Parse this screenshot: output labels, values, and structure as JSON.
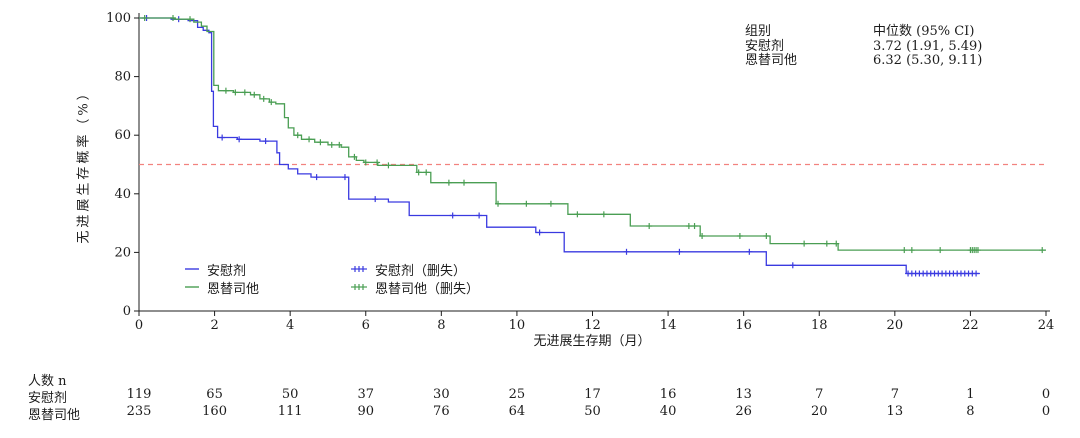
{
  "colors": {
    "axis": "#1c1c1c",
    "placebo_blue": "#3a3ae0",
    "entinostat_green": "#4a9e53",
    "reference_red": "#f2827f"
  },
  "chart_data": {
    "type": "line",
    "subtype": "kaplan-meier-step",
    "title": "",
    "xlabel": "无进展生存期（月）",
    "ylabel": "无进展生存概率（%）",
    "xlim": [
      0,
      24
    ],
    "ylim": [
      0,
      100
    ],
    "xticks": [
      0,
      2,
      4,
      6,
      8,
      10,
      12,
      14,
      16,
      18,
      20,
      22,
      24
    ],
    "yticks": [
      0,
      20,
      40,
      60,
      80,
      100
    ],
    "grid": false,
    "reference_line_y": 50,
    "legend_position": "inside-bottom-left",
    "legend_entries": [
      "安慰剂",
      "恩替司他",
      "安慰剂（删失）",
      "恩替司他（删失）"
    ],
    "series": [
      {
        "name": "安慰剂",
        "color": "#3a3ae0",
        "points": [
          [
            0,
            100
          ],
          [
            0.85,
            99.6
          ],
          [
            1.3,
            99.1
          ],
          [
            1.55,
            96.8
          ],
          [
            1.7,
            95.8
          ],
          [
            1.85,
            95.0
          ],
          [
            1.92,
            75
          ],
          [
            1.97,
            63
          ],
          [
            2.08,
            59.2
          ],
          [
            2.6,
            58.6
          ],
          [
            3.2,
            58.0
          ],
          [
            3.65,
            54
          ],
          [
            3.72,
            50
          ],
          [
            3.95,
            48.5
          ],
          [
            4.2,
            46.8
          ],
          [
            4.55,
            45.7
          ],
          [
            5.55,
            38.2
          ],
          [
            6.6,
            37.2
          ],
          [
            7.15,
            32.6
          ],
          [
            9.2,
            28.6
          ],
          [
            10.5,
            26.8
          ],
          [
            11.25,
            20.2
          ],
          [
            16.6,
            15.6
          ],
          [
            20.3,
            12.8
          ]
        ],
        "end_x": 22.25,
        "censor_marks": [
          0.2,
          1.05,
          2.2,
          2.65,
          3.35,
          4.7,
          5.45,
          6.25,
          8.3,
          9.0,
          10.6,
          12.9,
          14.3,
          16.15,
          17.3,
          20.35,
          20.45,
          20.55,
          20.65,
          20.75,
          20.85,
          20.95,
          21.05,
          21.15,
          21.25,
          21.35,
          21.45,
          21.55,
          21.65,
          21.75,
          21.85,
          21.95,
          22.05,
          22.15
        ]
      },
      {
        "name": "恩替司他",
        "color": "#4a9e53",
        "points": [
          [
            0,
            100
          ],
          [
            0.95,
            99.6
          ],
          [
            1.45,
            98.6
          ],
          [
            1.65,
            97.2
          ],
          [
            1.8,
            95.4
          ],
          [
            1.98,
            77
          ],
          [
            2.1,
            75.2
          ],
          [
            2.5,
            74.6
          ],
          [
            2.95,
            73.8
          ],
          [
            3.2,
            72.4
          ],
          [
            3.45,
            71.3
          ],
          [
            3.62,
            70.7
          ],
          [
            3.85,
            66
          ],
          [
            3.95,
            62.5
          ],
          [
            4.1,
            60
          ],
          [
            4.3,
            58.6
          ],
          [
            4.65,
            57.6
          ],
          [
            5.0,
            56.7
          ],
          [
            5.35,
            55.9
          ],
          [
            5.55,
            52.6
          ],
          [
            5.75,
            51.4
          ],
          [
            5.95,
            50.7
          ],
          [
            6.32,
            49.7
          ],
          [
            7.35,
            47.3
          ],
          [
            7.72,
            43.8
          ],
          [
            9.45,
            36.6
          ],
          [
            11.35,
            33.0
          ],
          [
            13.0,
            29.0
          ],
          [
            14.85,
            25.6
          ],
          [
            16.7,
            23.0
          ],
          [
            18.5,
            20.8
          ]
        ],
        "end_x": 24,
        "censor_marks": [
          0.15,
          0.9,
          1.35,
          2.3,
          2.55,
          2.8,
          3.05,
          3.3,
          3.5,
          4.2,
          4.5,
          4.8,
          5.1,
          5.3,
          5.7,
          6.0,
          6.3,
          6.6,
          7.4,
          7.6,
          8.2,
          8.6,
          9.5,
          10.25,
          10.9,
          11.6,
          12.3,
          13.5,
          14.55,
          14.7,
          14.9,
          15.9,
          16.6,
          17.6,
          18.2,
          18.45,
          20.25,
          20.45,
          21.2,
          22.0,
          22.05,
          22.1,
          22.15,
          22.2,
          23.9
        ]
      }
    ]
  },
  "median_box": {
    "header_group": "组别",
    "header_median": "中位数 (95% CI)",
    "rows": [
      {
        "group": "安慰剂",
        "value": "3.72 (1.91, 5.49)"
      },
      {
        "group": "恩替司他",
        "value": "6.32 (5.30, 9.11)"
      }
    ]
  },
  "risk_table": {
    "title": "人数 n",
    "rows": [
      {
        "label": "安慰剂",
        "counts": [
          119,
          65,
          50,
          37,
          30,
          25,
          17,
          16,
          13,
          7,
          7,
          1,
          0
        ]
      },
      {
        "label": "恩替司他",
        "counts": [
          235,
          160,
          111,
          90,
          76,
          64,
          50,
          40,
          26,
          20,
          13,
          8,
          0
        ]
      }
    ]
  }
}
